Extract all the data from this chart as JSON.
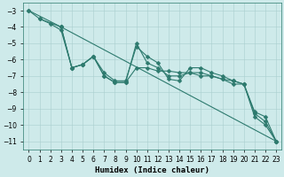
{
  "series": [
    {
      "x": [
        0,
        1,
        2,
        3,
        4,
        5,
        6,
        7,
        8,
        9,
        10,
        11,
        12,
        13,
        14,
        15,
        16,
        17,
        18,
        19,
        20,
        21,
        22,
        23
      ],
      "y": [
        -3,
        -3.5,
        -3.8,
        -4.2,
        -6.5,
        -6.3,
        -5.8,
        -6.8,
        -7.3,
        -7.3,
        -5.2,
        -5.8,
        -6.2,
        -7.2,
        -7.3,
        -6.5,
        -6.5,
        -6.8,
        -7.0,
        -7.3,
        -7.5,
        -9.3,
        -9.8,
        -11.0
      ]
    },
    {
      "x": [
        0,
        3,
        23
      ],
      "y": [
        -3,
        -4.0,
        -11.0
      ]
    },
    {
      "x": [
        3,
        4,
        5,
        6,
        7,
        8,
        9,
        10,
        11,
        12,
        13,
        14,
        15,
        16,
        17,
        18,
        19,
        20,
        21,
        22,
        23
      ],
      "y": [
        -4.0,
        -6.5,
        -6.3,
        -5.8,
        -7.0,
        -7.4,
        -7.4,
        -6.5,
        -6.5,
        -6.7,
        -6.7,
        -6.8,
        -6.8,
        -7.0,
        -7.0,
        -7.2,
        -7.3,
        -7.5,
        -9.2,
        -9.5,
        -11.0
      ]
    },
    {
      "x": [
        1,
        3,
        4,
        5,
        6,
        7,
        8,
        9,
        10,
        11,
        12,
        13,
        14,
        15,
        16,
        17,
        18,
        19,
        20,
        21,
        22,
        23
      ],
      "y": [
        -3.5,
        -4.0,
        -6.5,
        -6.3,
        -5.8,
        -7.0,
        -7.4,
        -7.4,
        -5.0,
        -6.2,
        -6.5,
        -7.0,
        -7.0,
        -6.8,
        -6.8,
        -7.0,
        -7.2,
        -7.5,
        -7.5,
        -9.5,
        -10.0,
        -11.0
      ]
    }
  ],
  "line_color": "#2d7a6e",
  "marker": "D",
  "markersize": 2.5,
  "linewidth": 0.8,
  "xlabel": "Humidex (Indice chaleur)",
  "xlim": [
    -0.5,
    23.5
  ],
  "ylim": [
    -11.5,
    -2.5
  ],
  "yticks": [
    -3,
    -4,
    -5,
    -6,
    -7,
    -8,
    -9,
    -10,
    -11
  ],
  "xticks": [
    0,
    1,
    2,
    3,
    4,
    5,
    6,
    7,
    8,
    9,
    10,
    11,
    12,
    13,
    14,
    15,
    16,
    17,
    18,
    19,
    20,
    21,
    22,
    23
  ],
  "background_color": "#ceeaea",
  "grid_color": "#aacece",
  "tick_fontsize": 5.5,
  "label_fontsize": 6.5
}
